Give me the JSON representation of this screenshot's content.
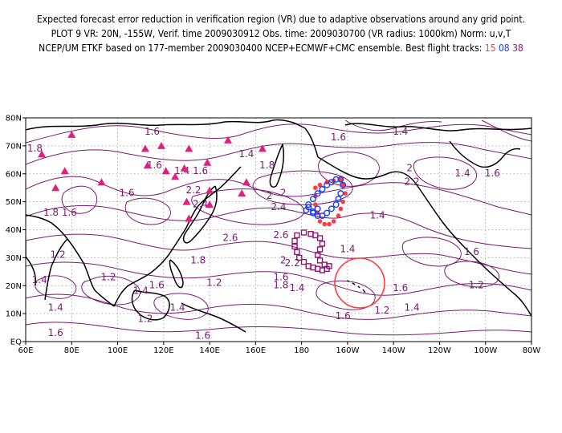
{
  "header": {
    "line1": "Expected forecast error reduction in verification region (VR) due to adaptive observations around any grid point.",
    "line2": "PLOT 9 VR: 20N, -155W, Verif. time 2009030912 Obs. time: 2009030700 (VR radius: 1000km) Norm: u,v,T",
    "line3_prefix": "NCEP/UM ETKF based on 177-member 2009030400 NCEP+ECMWF+CMC ensemble. Best flight tracks:",
    "track_a": "15",
    "track_b": "08",
    "track_c": "38"
  },
  "map": {
    "lon_range": [
      60,
      280
    ],
    "lat_range": [
      0,
      80
    ],
    "x_ticks": [
      "60E",
      "80E",
      "100E",
      "120E",
      "140E",
      "160E",
      "180",
      "160W",
      "140W",
      "120W",
      "100W",
      "80W"
    ],
    "y_ticks": [
      "EQ",
      "10N",
      "20N",
      "30N",
      "40N",
      "50N",
      "60N",
      "70N",
      "80N"
    ],
    "contour_labels": [
      {
        "text": "1.6",
        "lon": 115,
        "lat": 74
      },
      {
        "text": "1.8",
        "lon": 64,
        "lat": 68
      },
      {
        "text": "1.4",
        "lon": 156,
        "lat": 66
      },
      {
        "text": "1.6",
        "lon": 196,
        "lat": 72
      },
      {
        "text": "1.4",
        "lon": 223,
        "lat": 74
      },
      {
        "text": "1.8",
        "lon": 165,
        "lat": 62
      },
      {
        "text": "2",
        "lon": 227,
        "lat": 61
      },
      {
        "text": "2.2",
        "lon": 228,
        "lat": 56
      },
      {
        "text": "1.6",
        "lon": 116,
        "lat": 62
      },
      {
        "text": "1.4",
        "lon": 128,
        "lat": 60
      },
      {
        "text": "1.6",
        "lon": 136,
        "lat": 60
      },
      {
        "text": "1.4",
        "lon": 250,
        "lat": 59
      },
      {
        "text": "1.6",
        "lon": 263,
        "lat": 59
      },
      {
        "text": "1.6",
        "lon": 104,
        "lat": 52
      },
      {
        "text": "2.2",
        "lon": 133,
        "lat": 53
      },
      {
        "text": "2.4",
        "lon": 136,
        "lat": 48
      },
      {
        "text": "2.4",
        "lon": 170,
        "lat": 47
      },
      {
        "text": "2",
        "lon": 172,
        "lat": 52
      },
      {
        "text": "1.8",
        "lon": 71,
        "lat": 45
      },
      {
        "text": "1.6",
        "lon": 79,
        "lat": 45
      },
      {
        "text": "2",
        "lon": 166,
        "lat": 51
      },
      {
        "text": "1.4",
        "lon": 213,
        "lat": 44
      },
      {
        "text": "2.6",
        "lon": 149,
        "lat": 36
      },
      {
        "text": "2.6",
        "lon": 171,
        "lat": 37
      },
      {
        "text": "1.4",
        "lon": 200,
        "lat": 32
      },
      {
        "text": "1.6",
        "lon": 254,
        "lat": 31
      },
      {
        "text": "1.2",
        "lon": 74,
        "lat": 30
      },
      {
        "text": "1.8",
        "lon": 135,
        "lat": 28
      },
      {
        "text": "2",
        "lon": 172,
        "lat": 28
      },
      {
        "text": "2.2",
        "lon": 176,
        "lat": 27
      },
      {
        "text": "1.4",
        "lon": 66,
        "lat": 21
      },
      {
        "text": "1.2",
        "lon": 96,
        "lat": 22
      },
      {
        "text": "1.6",
        "lon": 117,
        "lat": 19
      },
      {
        "text": "1.4",
        "lon": 110,
        "lat": 17
      },
      {
        "text": "1.2",
        "lon": 142,
        "lat": 20
      },
      {
        "text": "1.8",
        "lon": 171,
        "lat": 19
      },
      {
        "text": "1.6",
        "lon": 171,
        "lat": 22
      },
      {
        "text": "1.4",
        "lon": 178,
        "lat": 18
      },
      {
        "text": "1.6",
        "lon": 223,
        "lat": 18
      },
      {
        "text": "1.2",
        "lon": 256,
        "lat": 19
      },
      {
        "text": "1.4",
        "lon": 73,
        "lat": 11
      },
      {
        "text": "1.2",
        "lon": 112,
        "lat": 7
      },
      {
        "text": "1.4",
        "lon": 126,
        "lat": 11
      },
      {
        "text": "1.2",
        "lon": 215,
        "lat": 10
      },
      {
        "text": "1.4",
        "lon": 228,
        "lat": 11
      },
      {
        "text": "1.6",
        "lon": 198,
        "lat": 8
      },
      {
        "text": "1.6",
        "lon": 73,
        "lat": 2
      },
      {
        "text": "1.6",
        "lon": 137,
        "lat": 1
      }
    ],
    "verification_region": {
      "lon": 205,
      "lat": 20,
      "radius_km": 1000
    },
    "observation_sites": [
      {
        "lon": 67,
        "lat": 67
      },
      {
        "lon": 73,
        "lat": 55
      },
      {
        "lon": 77,
        "lat": 61
      },
      {
        "lon": 80,
        "lat": 74
      },
      {
        "lon": 93,
        "lat": 57
      },
      {
        "lon": 112,
        "lat": 69
      },
      {
        "lon": 113,
        "lat": 63
      },
      {
        "lon": 119,
        "lat": 70
      },
      {
        "lon": 121,
        "lat": 61
      },
      {
        "lon": 125,
        "lat": 59
      },
      {
        "lon": 129,
        "lat": 62
      },
      {
        "lon": 131,
        "lat": 69
      },
      {
        "lon": 130,
        "lat": 50
      },
      {
        "lon": 131,
        "lat": 44
      },
      {
        "lon": 139,
        "lat": 64
      },
      {
        "lon": 140,
        "lat": 54
      },
      {
        "lon": 140,
        "lat": 49
      },
      {
        "lon": 148,
        "lat": 72
      },
      {
        "lon": 154,
        "lat": 53
      },
      {
        "lon": 156,
        "lat": 57
      },
      {
        "lon": 163,
        "lat": 69
      }
    ],
    "tracks": [
      {
        "id": "15",
        "color": "#ff3b3b",
        "marker": "filled-circle",
        "points": [
          [
            186,
            55
          ],
          [
            188,
            56
          ],
          [
            191,
            57
          ],
          [
            194,
            57.5
          ],
          [
            197,
            58
          ],
          [
            198,
            56
          ],
          [
            199,
            53
          ],
          [
            198,
            50
          ],
          [
            197,
            47.5
          ],
          [
            196,
            45
          ],
          [
            194,
            43
          ],
          [
            192,
            42
          ],
          [
            190,
            42
          ],
          [
            188,
            43
          ],
          [
            187,
            46
          ],
          [
            186,
            49
          ],
          [
            186,
            52
          ]
        ]
      },
      {
        "id": "08",
        "color": "#1a3ff0",
        "marker": "open-circle",
        "points": [
          [
            182,
            47
          ],
          [
            183,
            49
          ],
          [
            185,
            51
          ],
          [
            187,
            53
          ],
          [
            189,
            54.5
          ],
          [
            191,
            56
          ],
          [
            193,
            57
          ],
          [
            195,
            58
          ],
          [
            197,
            58
          ],
          [
            198,
            56
          ],
          [
            197,
            53
          ],
          [
            196,
            51
          ],
          [
            195,
            49
          ],
          [
            193,
            47.5
          ],
          [
            191,
            46
          ],
          [
            189,
            45
          ],
          [
            187,
            45
          ],
          [
            185,
            46
          ],
          [
            183,
            48
          ],
          [
            185,
            46.5
          ],
          [
            187,
            47.5
          ]
        ]
      },
      {
        "id": "38",
        "color": "#8a1a6e",
        "marker": "open-square",
        "points": [
          [
            178,
            38
          ],
          [
            181,
            39
          ],
          [
            184,
            38.5
          ],
          [
            186,
            38
          ],
          [
            188,
            37
          ],
          [
            189,
            35
          ],
          [
            188,
            33
          ],
          [
            187,
            31
          ],
          [
            188,
            29
          ],
          [
            190,
            27.5
          ],
          [
            192,
            27
          ],
          [
            191,
            26
          ],
          [
            189,
            25.5
          ],
          [
            187,
            26
          ],
          [
            185,
            26.5
          ],
          [
            183,
            27
          ],
          [
            181,
            28.5
          ],
          [
            179,
            30
          ],
          [
            178,
            32
          ],
          [
            177,
            34
          ],
          [
            177,
            36
          ]
        ]
      }
    ]
  }
}
